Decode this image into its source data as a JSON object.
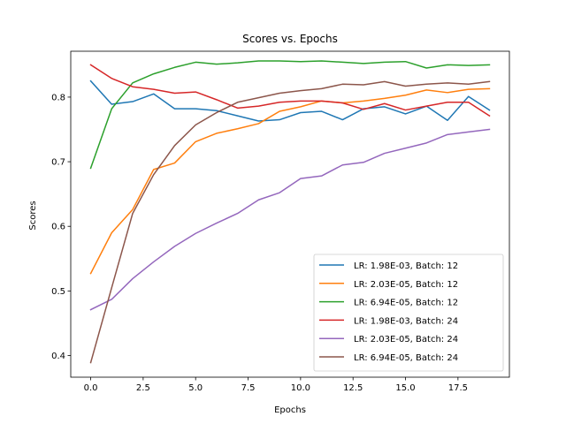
{
  "chart_data": {
    "type": "line",
    "title": "Scores vs. Epochs",
    "xlabel": "Epochs",
    "ylabel": "Scores",
    "xlim": [
      -0.95,
      19.95
    ],
    "ylim": [
      0.3665,
      0.871
    ],
    "xticks": [
      0.0,
      2.5,
      5.0,
      7.5,
      10.0,
      12.5,
      15.0,
      17.5
    ],
    "xtick_labels": [
      "0.0",
      "2.5",
      "5.0",
      "7.5",
      "10.0",
      "12.5",
      "15.0",
      "17.5"
    ],
    "yticks": [
      0.4,
      0.5,
      0.6,
      0.7,
      0.8
    ],
    "ytick_labels": [
      "0.4",
      "0.5",
      "0.6",
      "0.7",
      "0.8"
    ],
    "grid": false,
    "legend_position": "lower-right",
    "x": [
      0,
      1,
      2,
      3,
      4,
      5,
      6,
      7,
      8,
      9,
      10,
      11,
      12,
      13,
      14,
      15,
      16,
      17,
      18,
      19
    ],
    "series": [
      {
        "name": "LR: 1.98E-03, Batch: 12",
        "color": "#1f77b4",
        "values": [
          0.825,
          0.789,
          0.793,
          0.805,
          0.782,
          0.782,
          0.779,
          0.771,
          0.763,
          0.765,
          0.776,
          0.778,
          0.765,
          0.782,
          0.785,
          0.774,
          0.786,
          0.764,
          0.801,
          0.78
        ]
      },
      {
        "name": "LR: 2.03E-05, Batch: 12",
        "color": "#ff7f0e",
        "values": [
          0.527,
          0.59,
          0.626,
          0.688,
          0.698,
          0.731,
          0.744,
          0.751,
          0.759,
          0.778,
          0.785,
          0.794,
          0.791,
          0.794,
          0.798,
          0.803,
          0.811,
          0.807,
          0.812,
          0.813
        ]
      },
      {
        "name": "LR: 6.94E-05, Batch: 12",
        "color": "#2ca02c",
        "values": [
          0.69,
          0.782,
          0.822,
          0.836,
          0.846,
          0.854,
          0.851,
          0.853,
          0.856,
          0.856,
          0.855,
          0.856,
          0.854,
          0.852,
          0.854,
          0.855,
          0.845,
          0.85,
          0.849,
          0.85
        ]
      },
      {
        "name": "LR: 1.98E-03, Batch: 24",
        "color": "#d62728",
        "values": [
          0.85,
          0.829,
          0.816,
          0.812,
          0.806,
          0.808,
          0.796,
          0.783,
          0.786,
          0.792,
          0.794,
          0.794,
          0.791,
          0.781,
          0.79,
          0.78,
          0.786,
          0.792,
          0.792,
          0.771
        ]
      },
      {
        "name": "LR: 2.03E-05, Batch: 24",
        "color": "#9467bd",
        "values": [
          0.471,
          0.487,
          0.519,
          0.545,
          0.569,
          0.589,
          0.605,
          0.62,
          0.641,
          0.652,
          0.674,
          0.678,
          0.695,
          0.699,
          0.713,
          0.721,
          0.729,
          0.742,
          0.746,
          0.75
        ]
      },
      {
        "name": "LR: 6.94E-05, Batch: 24",
        "color": "#8c564b",
        "values": [
          0.389,
          0.505,
          0.62,
          0.68,
          0.725,
          0.757,
          0.776,
          0.792,
          0.799,
          0.806,
          0.81,
          0.813,
          0.82,
          0.819,
          0.824,
          0.817,
          0.82,
          0.822,
          0.82,
          0.824
        ]
      }
    ]
  }
}
